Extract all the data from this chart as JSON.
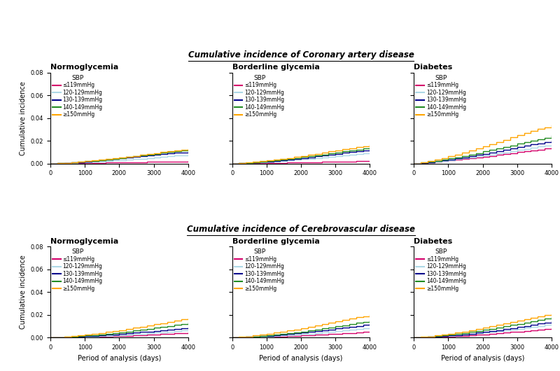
{
  "title_top": "Cumulative incidence of Coronary artery disease",
  "title_bottom": "Cumulative incidence of Cerebrovascular disease",
  "col_titles": [
    "Normoglycemia",
    "Borderline glycemia",
    "Diabetes"
  ],
  "legend_title": "SBP",
  "legend_labels": [
    "≤119mmHg",
    "120-129mmHg",
    "130-139mmHg",
    "140-149mmHg",
    "≥150mmHg"
  ],
  "colors": [
    "#d4006a",
    "#add8e6",
    "#00008b",
    "#228b22",
    "#ffa500"
  ],
  "xlabel": "Period of analysis (days)",
  "ylabel": "Cumulative incidence",
  "ylim": [
    0,
    0.08
  ],
  "yticks": [
    0.0,
    0.02,
    0.04,
    0.06,
    0.08
  ],
  "xlim": [
    0,
    4000
  ],
  "xticks": [
    0,
    1000,
    2000,
    3000,
    4000
  ],
  "background": "#ffffff",
  "data": {
    "coronary": {
      "normoglycemia": {
        "x": [
          0,
          200,
          400,
          600,
          800,
          1000,
          1200,
          1400,
          1600,
          1800,
          2000,
          2200,
          2400,
          2600,
          2800,
          3000,
          3200,
          3400,
          3600,
          3800,
          4000
        ],
        "le119": [
          0,
          0.0001,
          0.0002,
          0.0003,
          0.0004,
          0.0005,
          0.0006,
          0.0007,
          0.0008,
          0.0009,
          0.001,
          0.0011,
          0.0012,
          0.0013,
          0.0014,
          0.0015,
          0.0016,
          0.0017,
          0.0018,
          0.0019,
          0.002
        ],
        "s120_129": [
          0,
          0.0002,
          0.0004,
          0.0006,
          0.0009,
          0.0012,
          0.0015,
          0.0019,
          0.0023,
          0.0027,
          0.0031,
          0.0035,
          0.004,
          0.0044,
          0.0049,
          0.0054,
          0.0059,
          0.0064,
          0.0069,
          0.0074,
          0.0078
        ],
        "s130_139": [
          0,
          0.0003,
          0.0006,
          0.0009,
          0.0013,
          0.0017,
          0.0022,
          0.0027,
          0.0033,
          0.0039,
          0.0045,
          0.0051,
          0.0057,
          0.0063,
          0.007,
          0.0077,
          0.0083,
          0.0089,
          0.0094,
          0.0098,
          0.0102
        ],
        "s140_149": [
          0,
          0.0003,
          0.0007,
          0.0011,
          0.0015,
          0.002,
          0.0025,
          0.0031,
          0.0037,
          0.0043,
          0.005,
          0.0057,
          0.0064,
          0.0071,
          0.0079,
          0.0087,
          0.0094,
          0.0101,
          0.0108,
          0.0113,
          0.0118
        ],
        "ge150": [
          0,
          0.0003,
          0.0007,
          0.0011,
          0.0016,
          0.0021,
          0.0027,
          0.0033,
          0.0039,
          0.0046,
          0.0053,
          0.006,
          0.0068,
          0.0076,
          0.0084,
          0.0092,
          0.01,
          0.0108,
          0.0116,
          0.0122,
          0.0128
        ]
      },
      "borderline": {
        "x": [
          0,
          200,
          400,
          600,
          800,
          1000,
          1200,
          1400,
          1600,
          1800,
          2000,
          2200,
          2400,
          2600,
          2800,
          3000,
          3200,
          3400,
          3600,
          3800,
          4000
        ],
        "le119": [
          0,
          0.0001,
          0.0002,
          0.0003,
          0.0004,
          0.0005,
          0.0006,
          0.0007,
          0.0008,
          0.0009,
          0.001,
          0.0012,
          0.0013,
          0.0014,
          0.0015,
          0.0017,
          0.0018,
          0.0019,
          0.002,
          0.0022,
          0.0024
        ],
        "s120_129": [
          0,
          0.0002,
          0.0005,
          0.0008,
          0.0011,
          0.0015,
          0.0019,
          0.0024,
          0.0029,
          0.0034,
          0.0039,
          0.0044,
          0.0049,
          0.0055,
          0.0061,
          0.0067,
          0.0073,
          0.0079,
          0.0085,
          0.0091,
          0.0097
        ],
        "s130_139": [
          0,
          0.0003,
          0.0006,
          0.001,
          0.0014,
          0.0019,
          0.0024,
          0.003,
          0.0036,
          0.0042,
          0.0049,
          0.0056,
          0.0063,
          0.007,
          0.0078,
          0.0086,
          0.0094,
          0.0101,
          0.0108,
          0.0114,
          0.012
        ],
        "s140_149": [
          0,
          0.0003,
          0.0007,
          0.0012,
          0.0017,
          0.0022,
          0.0028,
          0.0035,
          0.0042,
          0.0049,
          0.0057,
          0.0065,
          0.0073,
          0.0081,
          0.009,
          0.0099,
          0.0108,
          0.0116,
          0.0124,
          0.0131,
          0.0138
        ],
        "ge150": [
          0,
          0.0004,
          0.0009,
          0.0014,
          0.002,
          0.0027,
          0.0034,
          0.0042,
          0.005,
          0.0059,
          0.0068,
          0.0077,
          0.0087,
          0.0097,
          0.0107,
          0.0117,
          0.0126,
          0.0135,
          0.0145,
          0.0154,
          0.0163
        ]
      },
      "diabetes": {
        "x": [
          0,
          200,
          400,
          600,
          800,
          1000,
          1200,
          1400,
          1600,
          1800,
          2000,
          2200,
          2400,
          2600,
          2800,
          3000,
          3200,
          3400,
          3600,
          3800,
          4000
        ],
        "le119": [
          0,
          0.0005,
          0.001,
          0.0015,
          0.0021,
          0.0027,
          0.0033,
          0.004,
          0.0047,
          0.0054,
          0.0061,
          0.0068,
          0.0076,
          0.0084,
          0.0092,
          0.01,
          0.0108,
          0.0116,
          0.0124,
          0.0132,
          0.014
        ],
        "s120_129": [
          0,
          0.0005,
          0.0011,
          0.0017,
          0.0024,
          0.0031,
          0.0039,
          0.0047,
          0.0055,
          0.0063,
          0.0072,
          0.0081,
          0.009,
          0.0099,
          0.0109,
          0.0119,
          0.0129,
          0.0139,
          0.0149,
          0.0158,
          0.0168
        ],
        "s130_139": [
          0,
          0.0006,
          0.0013,
          0.002,
          0.0028,
          0.0037,
          0.0046,
          0.0056,
          0.0066,
          0.0076,
          0.0087,
          0.0098,
          0.0109,
          0.0121,
          0.0133,
          0.0145,
          0.0157,
          0.0168,
          0.0179,
          0.019,
          0.02
        ],
        "s140_149": [
          0,
          0.0008,
          0.0016,
          0.0025,
          0.0035,
          0.0045,
          0.0056,
          0.0068,
          0.008,
          0.0093,
          0.0106,
          0.0119,
          0.0132,
          0.0146,
          0.016,
          0.0174,
          0.0188,
          0.0201,
          0.0214,
          0.0228,
          0.0242
        ],
        "ge150": [
          0,
          0.001,
          0.0022,
          0.0035,
          0.0049,
          0.0064,
          0.008,
          0.0097,
          0.0115,
          0.0133,
          0.0151,
          0.017,
          0.019,
          0.021,
          0.023,
          0.025,
          0.0268,
          0.0285,
          0.0305,
          0.032,
          0.0335
        ]
      }
    },
    "cerebrovascular": {
      "normoglycemia": {
        "x": [
          0,
          200,
          400,
          600,
          800,
          1000,
          1200,
          1400,
          1600,
          1800,
          2000,
          2200,
          2400,
          2600,
          2800,
          3000,
          3200,
          3400,
          3600,
          3800,
          4000
        ],
        "le119": [
          0,
          0.0001,
          0.0002,
          0.0003,
          0.0004,
          0.0006,
          0.0007,
          0.0009,
          0.0011,
          0.0013,
          0.0015,
          0.0017,
          0.0019,
          0.0022,
          0.0025,
          0.0028,
          0.0031,
          0.0034,
          0.0037,
          0.004,
          0.0043
        ],
        "s120_129": [
          0,
          0.0001,
          0.0003,
          0.0005,
          0.0007,
          0.0009,
          0.0011,
          0.0014,
          0.0017,
          0.002,
          0.0023,
          0.0026,
          0.003,
          0.0034,
          0.0038,
          0.0042,
          0.0046,
          0.0051,
          0.0056,
          0.0061,
          0.0065
        ],
        "s130_139": [
          0,
          0.0002,
          0.0004,
          0.0007,
          0.001,
          0.0013,
          0.0016,
          0.002,
          0.0024,
          0.0028,
          0.0033,
          0.0038,
          0.0043,
          0.0048,
          0.0054,
          0.006,
          0.0066,
          0.0072,
          0.0078,
          0.0084,
          0.009
        ],
        "s140_149": [
          0,
          0.0003,
          0.0006,
          0.0009,
          0.0013,
          0.0018,
          0.0023,
          0.0028,
          0.0034,
          0.004,
          0.0047,
          0.0054,
          0.0061,
          0.0069,
          0.0077,
          0.0085,
          0.0094,
          0.0102,
          0.0111,
          0.012,
          0.013
        ],
        "ge150": [
          0,
          0.0004,
          0.0009,
          0.0014,
          0.002,
          0.0026,
          0.0033,
          0.004,
          0.0048,
          0.0057,
          0.0066,
          0.0075,
          0.0085,
          0.0095,
          0.0105,
          0.0116,
          0.0127,
          0.0138,
          0.0149,
          0.016,
          0.017
        ]
      },
      "borderline": {
        "x": [
          0,
          200,
          400,
          600,
          800,
          1000,
          1200,
          1400,
          1600,
          1800,
          2000,
          2200,
          2400,
          2600,
          2800,
          3000,
          3200,
          3400,
          3600,
          3800,
          4000
        ],
        "le119": [
          0,
          0.0001,
          0.0002,
          0.0003,
          0.0005,
          0.0007,
          0.0009,
          0.0011,
          0.0013,
          0.0016,
          0.0019,
          0.0022,
          0.0025,
          0.0028,
          0.0031,
          0.0034,
          0.0037,
          0.004,
          0.0044,
          0.0048,
          0.0052
        ],
        "s120_129": [
          0,
          0.0001,
          0.0003,
          0.0005,
          0.0008,
          0.0011,
          0.0014,
          0.0018,
          0.0022,
          0.0026,
          0.003,
          0.0035,
          0.004,
          0.0045,
          0.0051,
          0.0057,
          0.0063,
          0.0069,
          0.0075,
          0.0081,
          0.0087
        ],
        "s130_139": [
          0,
          0.0002,
          0.0005,
          0.0008,
          0.0012,
          0.0016,
          0.0021,
          0.0026,
          0.0031,
          0.0037,
          0.0043,
          0.005,
          0.0057,
          0.0064,
          0.0071,
          0.0079,
          0.0087,
          0.0095,
          0.0103,
          0.0111,
          0.0119
        ],
        "s140_149": [
          0,
          0.0003,
          0.0006,
          0.001,
          0.0015,
          0.002,
          0.0026,
          0.0032,
          0.0039,
          0.0046,
          0.0054,
          0.0062,
          0.0071,
          0.008,
          0.0089,
          0.0099,
          0.0109,
          0.0119,
          0.0129,
          0.0139,
          0.0149
        ],
        "ge150": [
          0,
          0.0005,
          0.0011,
          0.0018,
          0.0025,
          0.0033,
          0.0042,
          0.0051,
          0.0061,
          0.0071,
          0.0082,
          0.0094,
          0.0106,
          0.0119,
          0.0132,
          0.0145,
          0.0157,
          0.0168,
          0.0179,
          0.0189,
          0.0199
        ]
      },
      "diabetes": {
        "x": [
          0,
          200,
          400,
          600,
          800,
          1000,
          1200,
          1400,
          1600,
          1800,
          2000,
          2200,
          2400,
          2600,
          2800,
          3000,
          3200,
          3400,
          3600,
          3800,
          4000
        ],
        "le119": [
          0,
          0.0001,
          0.0003,
          0.0005,
          0.0007,
          0.001,
          0.0013,
          0.0016,
          0.002,
          0.0024,
          0.0028,
          0.0033,
          0.0038,
          0.0043,
          0.0048,
          0.0053,
          0.0059,
          0.0065,
          0.0071,
          0.0077,
          0.0083
        ],
        "s120_129": [
          0,
          0.0002,
          0.0005,
          0.0008,
          0.0012,
          0.0016,
          0.002,
          0.0025,
          0.003,
          0.0036,
          0.0042,
          0.0049,
          0.0056,
          0.0063,
          0.007,
          0.0078,
          0.0086,
          0.0094,
          0.0102,
          0.0111,
          0.012
        ],
        "s130_139": [
          0,
          0.0002,
          0.0005,
          0.0009,
          0.0013,
          0.0018,
          0.0023,
          0.0029,
          0.0035,
          0.0042,
          0.0049,
          0.0057,
          0.0065,
          0.0074,
          0.0083,
          0.0092,
          0.0102,
          0.0112,
          0.0122,
          0.0132,
          0.0142
        ],
        "s140_149": [
          0,
          0.0003,
          0.0008,
          0.0013,
          0.0019,
          0.0025,
          0.0032,
          0.004,
          0.0048,
          0.0057,
          0.0067,
          0.0077,
          0.0088,
          0.0099,
          0.011,
          0.0121,
          0.0133,
          0.0145,
          0.0157,
          0.0169,
          0.0181
        ],
        "ge150": [
          0,
          0.0005,
          0.0011,
          0.0018,
          0.0026,
          0.0034,
          0.0043,
          0.0053,
          0.0064,
          0.0075,
          0.0087,
          0.0099,
          0.0112,
          0.0125,
          0.0139,
          0.0152,
          0.0164,
          0.0175,
          0.0186,
          0.0196,
          0.0206
        ]
      }
    }
  }
}
